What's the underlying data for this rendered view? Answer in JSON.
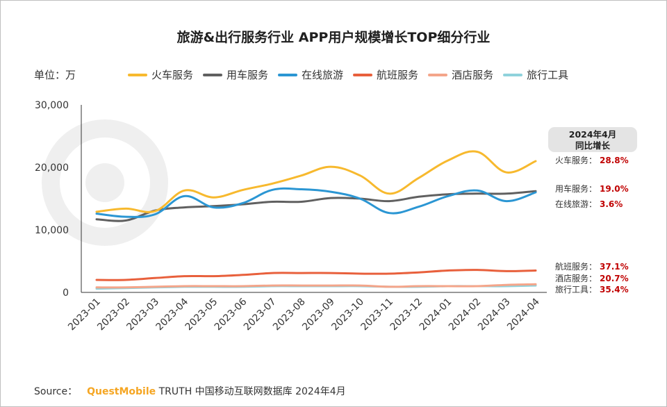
{
  "title": "旅游&出行服务行业 APP用户规模增长TOP细分行业",
  "unit_label": "单位：万",
  "source": {
    "prefix": "Source：",
    "brand": "QuestMobile",
    "text": "TRUTH 中国移动互联网数据库 2024年4月"
  },
  "yoy_header": {
    "line1": "2024年4月",
    "line2": "同比增长"
  },
  "chart_data": {
    "type": "line",
    "categories": [
      "2023-01",
      "2023-02",
      "2023-03",
      "2023-04",
      "2023-05",
      "2023-06",
      "2023-07",
      "2023-08",
      "2023-09",
      "2023-10",
      "2023-11",
      "2023-12",
      "2024-01",
      "2024-02",
      "2024-03",
      "2024-04"
    ],
    "ylim": [
      0,
      30000
    ],
    "yticks": [
      0,
      10000,
      20000,
      30000
    ],
    "ytick_labels": [
      "0",
      "10,000",
      "20,000",
      "30,000"
    ],
    "series": [
      {
        "name": "火车服务",
        "color": "#f7b92e",
        "values": [
          12900,
          13400,
          13000,
          16300,
          15200,
          16400,
          17400,
          18700,
          20100,
          18700,
          15800,
          18300,
          21100,
          22500,
          19200,
          21000
        ],
        "yoy": "28.8%"
      },
      {
        "name": "用车服务",
        "color": "#606060",
        "values": [
          11700,
          11500,
          13100,
          13600,
          13800,
          14100,
          14500,
          14500,
          15100,
          15000,
          14600,
          15300,
          15700,
          15800,
          15800,
          16200
        ],
        "yoy": "19.0%"
      },
      {
        "name": "在线旅游",
        "color": "#2b96d3",
        "values": [
          12600,
          12100,
          12500,
          15400,
          13600,
          14300,
          16400,
          16500,
          16100,
          15000,
          12700,
          13700,
          15400,
          16300,
          14600,
          16000
        ],
        "yoy": "3.6%"
      },
      {
        "name": "航班服务",
        "color": "#e8603c",
        "values": [
          2000,
          2000,
          2300,
          2600,
          2600,
          2800,
          3100,
          3100,
          3100,
          3000,
          3000,
          3200,
          3500,
          3600,
          3400,
          3500
        ],
        "yoy": "37.1%"
      },
      {
        "name": "酒店服务",
        "color": "#f4a58a",
        "values": [
          800,
          800,
          900,
          1000,
          1000,
          1000,
          1100,
          1100,
          1100,
          1100,
          900,
          1000,
          1000,
          1000,
          1200,
          1300
        ],
        "yoy": "20.7%"
      },
      {
        "name": "旅行工具",
        "color": "#8fd2dc",
        "values": [
          600,
          700,
          800,
          900,
          900,
          900,
          1000,
          1000,
          1000,
          1000,
          900,
          900,
          1000,
          1000,
          1000,
          1100
        ],
        "yoy": "35.4%"
      }
    ]
  }
}
